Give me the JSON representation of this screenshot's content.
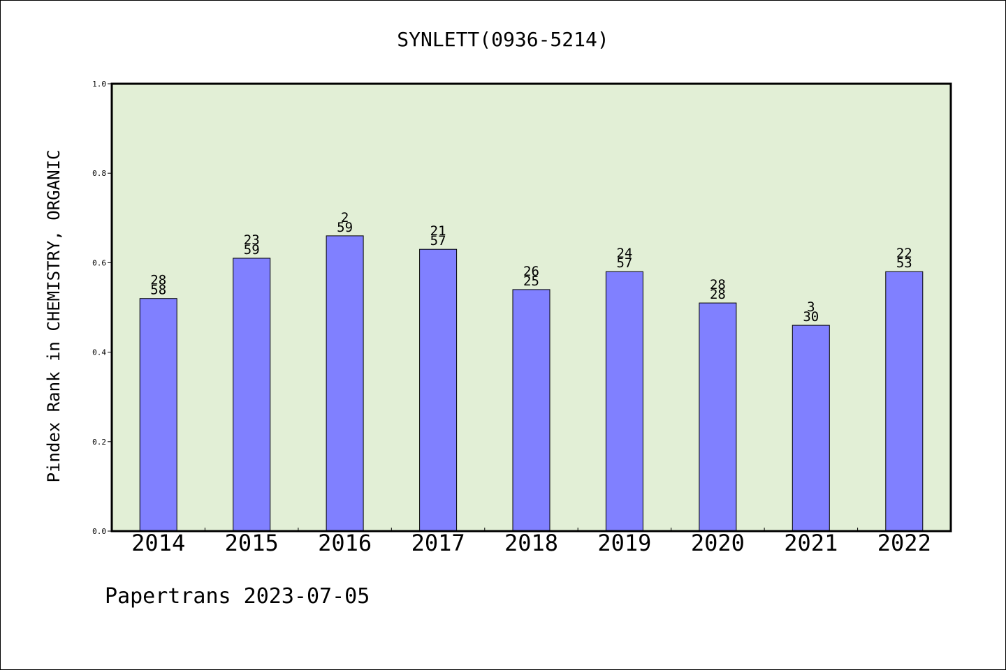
{
  "chart_data": {
    "type": "bar",
    "title": "SYNLETT(0936-5214)",
    "ylabel": "Pindex Rank in CHEMISTRY, ORGANIC",
    "xlabel": "",
    "categories": [
      "2014",
      "2015",
      "2016",
      "2017",
      "2018",
      "2019",
      "2020",
      "2021",
      "2022"
    ],
    "values": [
      0.52,
      0.61,
      0.66,
      0.63,
      0.54,
      0.58,
      0.51,
      0.46,
      0.58
    ],
    "label_top": [
      "28",
      "23",
      "2",
      "21",
      "26",
      "24",
      "28",
      "3",
      "22"
    ],
    "label_bottom": [
      "58",
      "59",
      "59",
      "57",
      "25",
      "57",
      "28",
      "30",
      "53"
    ],
    "ylim": [
      0.0,
      1.0
    ],
    "yticks": [
      "0.0",
      "0.2",
      "0.4",
      "0.6",
      "0.8",
      "1.0"
    ],
    "grid": false,
    "legend": "none",
    "colors": {
      "bar": "#8080ff",
      "plot_bg": "#e2efd6",
      "axis": "#000000"
    }
  },
  "footer": {
    "text": "Papertrans 2023-07-05"
  }
}
